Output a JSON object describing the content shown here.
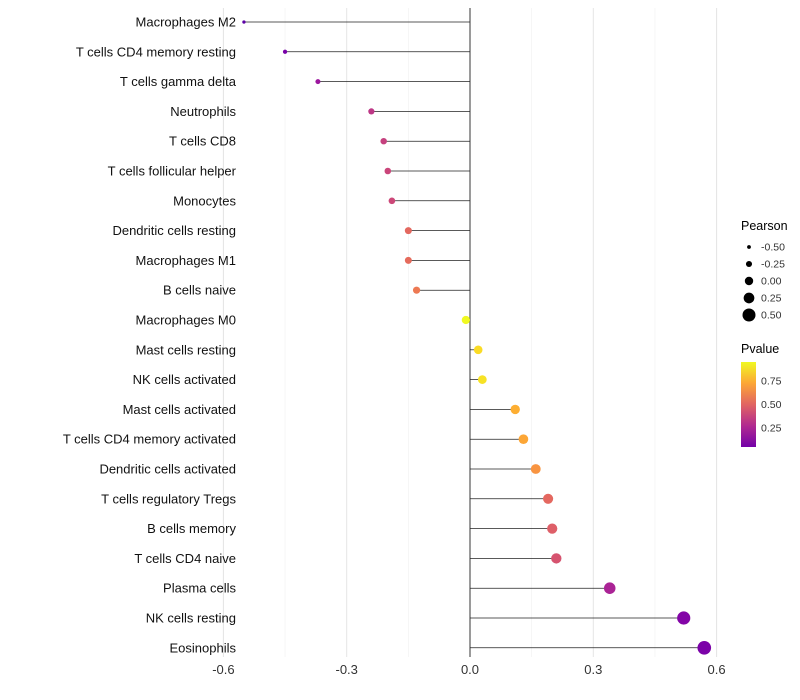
{
  "chart_data": {
    "type": "scatter",
    "variant": "lollipop-horizontal",
    "title": "",
    "xlabel": "",
    "ylabel": "",
    "grid": "on",
    "categories": [
      "Macrophages M2",
      "T cells CD4 memory resting",
      "T cells gamma delta",
      "Neutrophils",
      "T cells CD8",
      "T cells follicular helper",
      "Monocytes",
      "Dendritic cells resting",
      "Macrophages M1",
      "B cells naive",
      "Macrophages M0",
      "Mast cells resting",
      "NK cells activated",
      "Mast cells activated",
      "T cells CD4 memory activated",
      "Dendritic cells activated",
      "T cells regulatory  Tregs",
      "B cells memory",
      "T cells CD4 naive",
      "Plasma cells",
      "NK cells resting",
      "Eosinophils"
    ],
    "values": [
      -0.55,
      -0.45,
      -0.37,
      -0.24,
      -0.21,
      -0.2,
      -0.19,
      -0.15,
      -0.15,
      -0.13,
      -0.01,
      0.02,
      0.03,
      0.11,
      0.13,
      0.16,
      0.19,
      0.2,
      0.21,
      0.34,
      0.52,
      0.57
    ],
    "point_colors": [
      "#5c01a6",
      "#7801a8",
      "#9c179e",
      "#bd3786",
      "#c5407e",
      "#ca457a",
      "#cc4778",
      "#e3685f",
      "#e56b5c",
      "#ed7953",
      "#f0f921",
      "#fadb25",
      "#f7e225",
      "#fdae32",
      "#fca636",
      "#f89441",
      "#e46860",
      "#de5f68",
      "#d6536f",
      "#aa2395",
      "#8305a7",
      "#7b02a8"
    ],
    "stem_color": "#222222",
    "zero_line_color": "#222222",
    "grid_major_color": "#e4e4e4",
    "grid_minor_color": "#f2f2f2",
    "x_axis": {
      "range": [
        -0.72,
        0.65
      ],
      "ticks": [
        -0.6,
        -0.3,
        0.0,
        0.3,
        0.6
      ],
      "tick_labels": [
        "-0.6",
        "-0.3",
        "0.0",
        "0.3",
        "0.6"
      ],
      "minor_ticks": [
        -0.45,
        -0.15,
        0.15,
        0.45
      ]
    },
    "size_legend": {
      "title": "Pearson",
      "labels": [
        "-0.50",
        "-0.25",
        "0.00",
        "0.25",
        "0.50"
      ],
      "values": [
        -0.5,
        -0.25,
        0.0,
        0.25,
        0.5
      ],
      "dot_color": "#000000"
    },
    "color_legend": {
      "title": "Pvalue",
      "tick_labels": [
        "0.75",
        "0.50",
        "0.25"
      ],
      "tick_values": [
        0.75,
        0.5,
        0.25
      ],
      "gradient_top_to_bottom": [
        "#f0f921",
        "#fca636",
        "#e16462",
        "#b12a90",
        "#7301a8"
      ]
    }
  }
}
